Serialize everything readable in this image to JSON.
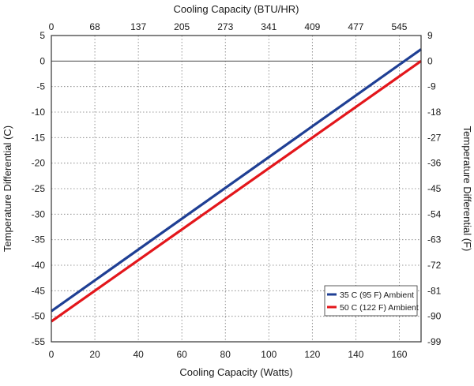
{
  "chart_data": {
    "type": "line",
    "xlabel": "Cooling Capacity (Watts)",
    "x2label": "Cooling Capacity (BTU/HR)",
    "ylabel": "Temperature Differential (C)",
    "y2label": "Temperature Differential (F)",
    "xlim": [
      0,
      170
    ],
    "ylim": [
      -55,
      5
    ],
    "x_ticks": [
      "0",
      "20",
      "40",
      "60",
      "80",
      "100",
      "120",
      "140",
      "160"
    ],
    "x2_ticks": [
      "0",
      "68",
      "137",
      "205",
      "273",
      "341",
      "409",
      "477",
      "545"
    ],
    "y_ticks": [
      "5",
      "0",
      "-5",
      "-10",
      "-15",
      "-20",
      "-25",
      "-30",
      "-35",
      "-40",
      "-45",
      "-50",
      "-55"
    ],
    "y2_ticks": [
      "9",
      "0",
      "-9",
      "-18",
      "-27",
      "-36",
      "-45",
      "-54",
      "-63",
      "-72",
      "-81",
      "-90",
      "-99"
    ],
    "grid": true,
    "legend_position": "bottom-right",
    "series": [
      {
        "name": "35 C (95 F) Ambient",
        "color": "#1f3f94",
        "x": [
          0,
          170
        ],
        "y": [
          -49,
          2.3
        ]
      },
      {
        "name": "50 C (122 F) Ambient",
        "color": "#e3161b",
        "x": [
          0,
          170
        ],
        "y": [
          -51,
          0
        ]
      }
    ]
  }
}
